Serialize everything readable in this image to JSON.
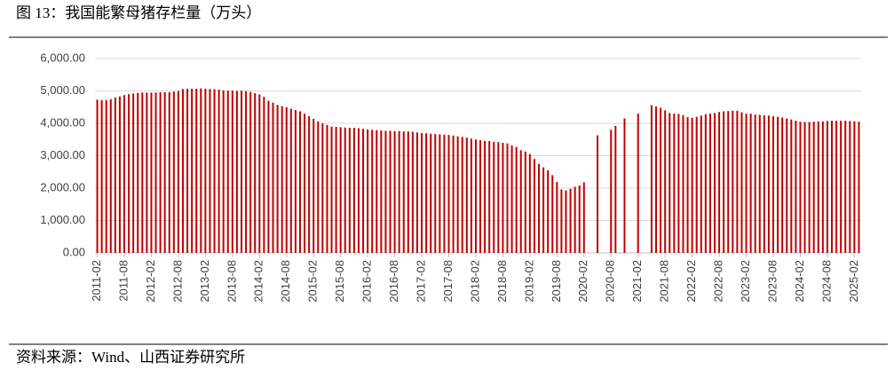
{
  "chart_data": {
    "type": "bar",
    "title": "图 13：我国能繁母猪存栏量（万头）",
    "source": "资料来源：Wind、山西证券研究所",
    "color": "#c00000",
    "grid": true,
    "ylim": [
      0,
      6000
    ],
    "yticks": [
      {
        "value": 0,
        "label": "0.00"
      },
      {
        "value": 1000,
        "label": "1,000.00"
      },
      {
        "value": 2000,
        "label": "2,000.00"
      },
      {
        "value": 3000,
        "label": "3,000.00"
      },
      {
        "value": 4000,
        "label": "4,000.00"
      },
      {
        "value": 5000,
        "label": "5,000.00"
      },
      {
        "value": 6000,
        "label": "6,000.00"
      }
    ],
    "categories": [
      "2011-02",
      null,
      null,
      null,
      null,
      null,
      "2011-08",
      null,
      null,
      null,
      null,
      null,
      "2012-02",
      null,
      null,
      null,
      null,
      null,
      "2012-08",
      null,
      null,
      null,
      null,
      null,
      "2013-02",
      null,
      null,
      null,
      null,
      null,
      "2013-08",
      null,
      null,
      null,
      null,
      null,
      "2014-02",
      null,
      null,
      null,
      null,
      null,
      "2014-08",
      null,
      null,
      null,
      null,
      null,
      "2015-02",
      null,
      null,
      null,
      null,
      null,
      "2015-08",
      null,
      null,
      null,
      null,
      null,
      "2016-02",
      null,
      null,
      null,
      null,
      null,
      "2016-08",
      null,
      null,
      null,
      null,
      null,
      "2017-02",
      null,
      null,
      null,
      null,
      null,
      "2017-08",
      null,
      null,
      null,
      null,
      null,
      "2018-02",
      null,
      null,
      null,
      null,
      null,
      "2018-08",
      null,
      null,
      null,
      null,
      null,
      "2019-02",
      null,
      null,
      null,
      null,
      null,
      "2019-08",
      null,
      null,
      null,
      null,
      null,
      "2020-02",
      null,
      null,
      null,
      null,
      null,
      "2020-08",
      null,
      null,
      null,
      null,
      null,
      "2021-02",
      null,
      null,
      null,
      null,
      null,
      "2021-08",
      null,
      null,
      null,
      null,
      null,
      "2022-02",
      null,
      null,
      null,
      null,
      null,
      "2022-08",
      null,
      null,
      null,
      null,
      null,
      "2023-02",
      null,
      null,
      null,
      null,
      null,
      "2023-08",
      null,
      null,
      null,
      null,
      null,
      "2024-02",
      null,
      null,
      null,
      null,
      null,
      "2024-08",
      null,
      null,
      null,
      null,
      null,
      "2025-02",
      null
    ],
    "values": [
      4730,
      4720,
      4720,
      4750,
      4800,
      4830,
      4870,
      4900,
      4920,
      4940,
      4950,
      4950,
      4950,
      4950,
      4960,
      4960,
      4960,
      4980,
      5000,
      5060,
      5070,
      5070,
      5070,
      5080,
      5070,
      5060,
      5050,
      5040,
      5020,
      5010,
      5010,
      5000,
      5010,
      4990,
      4970,
      4930,
      4890,
      4820,
      4700,
      4640,
      4570,
      4530,
      4500,
      4450,
      4410,
      4370,
      4300,
      4220,
      4140,
      4060,
      4000,
      3950,
      3900,
      3890,
      3880,
      3870,
      3860,
      3860,
      3850,
      3830,
      3810,
      3800,
      3790,
      3780,
      3770,
      3770,
      3760,
      3760,
      3750,
      3750,
      3740,
      3720,
      3700,
      3690,
      3680,
      3670,
      3660,
      3650,
      3640,
      3620,
      3600,
      3580,
      3560,
      3530,
      3500,
      3480,
      3460,
      3450,
      3430,
      3420,
      3400,
      3380,
      3320,
      3270,
      3170,
      3130,
      3050,
      2900,
      2750,
      2640,
      2550,
      2400,
      2190,
      1960,
      1930,
      1980,
      2040,
      2080,
      2180,
      null,
      null,
      3630,
      null,
      null,
      3800,
      3920,
      null,
      4150,
      null,
      null,
      4300,
      null,
      null,
      4560,
      4520,
      4480,
      4400,
      4320,
      4300,
      4290,
      4250,
      4190,
      4170,
      4200,
      4240,
      4280,
      4300,
      4320,
      4350,
      4370,
      4380,
      4390,
      4390,
      4340,
      4300,
      4300,
      4270,
      4260,
      4250,
      4240,
      4220,
      4200,
      4180,
      4150,
      4120,
      4080,
      4050,
      4040,
      4040,
      4050,
      4060,
      4060,
      4070,
      4080,
      4080,
      4080,
      4080,
      4070,
      4060,
      4050
    ]
  }
}
